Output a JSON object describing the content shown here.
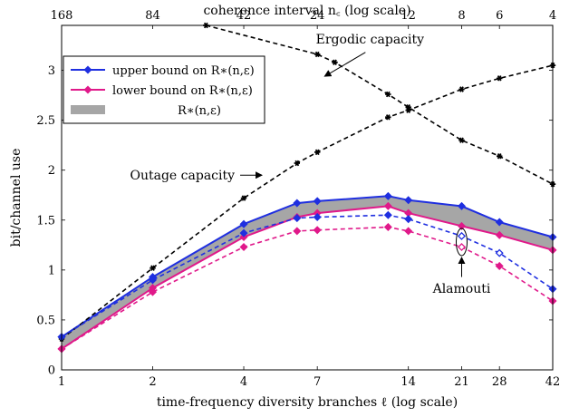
{
  "chart_data": {
    "type": "line",
    "xlabel": "time-frequency diversity branches ℓ (log scale)",
    "top_xlabel": "coherence interval n_c (log scale)",
    "ylabel": "bit/channel use",
    "xscale": "log",
    "xlim": [
      1,
      42
    ],
    "ylim": [
      0,
      3.45
    ],
    "x_ticks": [
      1,
      2,
      4,
      7,
      14,
      21,
      28,
      42
    ],
    "y_ticks": [
      0,
      0.5,
      1,
      1.5,
      2,
      2.5,
      3
    ],
    "top_ticks": [
      {
        "label": "168",
        "ell": 1
      },
      {
        "label": "84",
        "ell": 2
      },
      {
        "label": "42",
        "ell": 4
      },
      {
        "label": "24",
        "ell": 7
      },
      {
        "label": "12",
        "ell": 14
      },
      {
        "label": "8",
        "ell": 21
      },
      {
        "label": "6",
        "ell": 28
      },
      {
        "label": "4",
        "ell": 42
      }
    ],
    "series": [
      {
        "name": "upper bound on R*(n,ϵ)",
        "color": "#1f2fe0",
        "style": "solid",
        "marker": "diamond-filled",
        "x": [
          1,
          2,
          4,
          6,
          7,
          12,
          14,
          21,
          28,
          42
        ],
        "y": [
          0.33,
          0.93,
          1.46,
          1.67,
          1.69,
          1.74,
          1.7,
          1.64,
          1.48,
          1.33
        ]
      },
      {
        "name": "lower bound on R*(n,ϵ)",
        "color": "#e0198a",
        "style": "solid",
        "marker": "diamond-filled",
        "x": [
          1,
          2,
          4,
          6,
          7,
          12,
          14,
          21,
          28,
          42
        ],
        "y": [
          0.21,
          0.82,
          1.33,
          1.53,
          1.57,
          1.64,
          1.57,
          1.44,
          1.35,
          1.2
        ]
      },
      {
        "name": "R*(n,ϵ)",
        "type": "band",
        "color": "#a6a6a6",
        "between": [
          "upper bound on R*(n,ϵ)",
          "lower bound on R*(n,ϵ)"
        ]
      },
      {
        "name": "Ergodic capacity",
        "color": "#000000",
        "style": "dashed",
        "marker": "star",
        "x": [
          3.0,
          7,
          8,
          12,
          14,
          21,
          28,
          42
        ],
        "y": [
          3.45,
          3.16,
          3.08,
          2.76,
          2.63,
          2.3,
          2.14,
          1.86
        ]
      },
      {
        "name": "Outage capacity",
        "color": "#000000",
        "style": "dashed",
        "marker": "star",
        "x": [
          1,
          2,
          4,
          6,
          7,
          12,
          14,
          21,
          28,
          42
        ],
        "y": [
          0.31,
          1.02,
          1.72,
          2.07,
          2.18,
          2.53,
          2.6,
          2.81,
          2.92,
          3.05
        ]
      },
      {
        "name": "Alamouti upper",
        "color": "#1f2fe0",
        "style": "dashed",
        "marker": "diamond-filled",
        "x": [
          1,
          2,
          4,
          6,
          7,
          12,
          14,
          21,
          28,
          42
        ],
        "y": [
          0.33,
          0.9,
          1.37,
          1.52,
          1.53,
          1.55,
          1.51,
          1.34,
          1.17,
          0.81
        ],
        "open_markers_at": [
          21,
          28
        ]
      },
      {
        "name": "Alamouti lower",
        "color": "#e0198a",
        "style": "dashed",
        "marker": "diamond-filled",
        "x": [
          1,
          2,
          4,
          6,
          7,
          12,
          14,
          21,
          28,
          42
        ],
        "y": [
          0.21,
          0.78,
          1.23,
          1.39,
          1.4,
          1.43,
          1.39,
          1.23,
          1.04,
          0.69
        ],
        "open_markers_at": [
          21
        ]
      }
    ],
    "legend": {
      "placement": "top-left",
      "entries": [
        {
          "label": "upper bound on R*(n,ϵ)",
          "color": "#1f2fe0",
          "kind": "line"
        },
        {
          "label": "lower bound on R*(n,ϵ)",
          "color": "#e0198a",
          "kind": "line"
        },
        {
          "label": "R*(n,ϵ)",
          "color": "#a6a6a6",
          "kind": "band"
        }
      ]
    },
    "annotations": [
      {
        "text": "Ergodic capacity",
        "target_x": 12,
        "target_y": 2.76
      },
      {
        "text": "Outage capacity",
        "target_x": 4,
        "target_y": 1.95
      },
      {
        "text": "Alamouti",
        "target_x": 21,
        "target_y": 1.28
      }
    ]
  }
}
